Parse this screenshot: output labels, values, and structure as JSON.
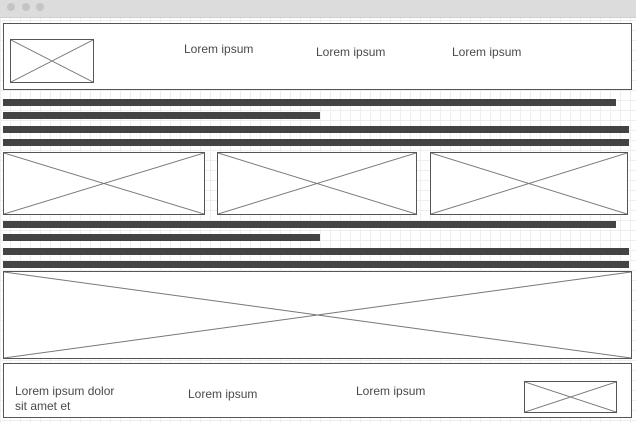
{
  "header": {
    "logo_icon": "image-placeholder-icon",
    "nav_items": [
      {
        "label": "Lorem ipsum"
      },
      {
        "label": "Lorem ipsum"
      },
      {
        "label": "Lorem ipsum"
      }
    ]
  },
  "main": {
    "gallery_icon": "image-placeholder-icon",
    "banner_icon": "image-placeholder-icon"
  },
  "footer": {
    "text_line1": "Lorem ipsum dolor",
    "text_line2": "sit amet et",
    "links": [
      {
        "label": "Lorem ipsum"
      },
      {
        "label": "Lorem ipsum"
      }
    ],
    "logo_icon": "image-placeholder-icon"
  },
  "colors": {
    "bar": "#444444",
    "border": "#555555",
    "titlebar": "#dcdcdc",
    "grid": "#eeeeee"
  }
}
